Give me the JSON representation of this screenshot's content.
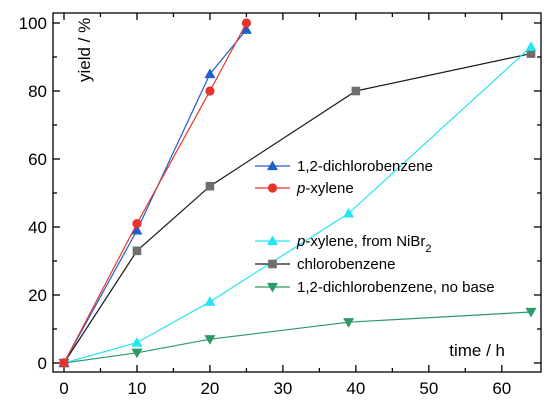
{
  "chart_data": {
    "type": "line",
    "title": "",
    "xlabel": "time / h",
    "ylabel": "yield / %",
    "xlim": [
      0,
      64
    ],
    "ylim": [
      0,
      100
    ],
    "xticks": [
      0,
      10,
      20,
      30,
      40,
      50,
      60
    ],
    "yticks": [
      0,
      20,
      40,
      60,
      80,
      100
    ],
    "grid": false,
    "legend_position": "right",
    "series": [
      {
        "name": "1,2-dichlorobenzene",
        "name_parts": [
          {
            "text": "1,2-dichlorobenzene"
          }
        ],
        "marker": "triangle-up",
        "color": "#1f5fc8",
        "x": [
          0,
          10,
          20,
          25
        ],
        "y": [
          0,
          39,
          85,
          98
        ]
      },
      {
        "name": "p-xylene",
        "name_parts": [
          {
            "text": "p",
            "style": "italic"
          },
          {
            "text": "-xylene"
          }
        ],
        "marker": "circle",
        "color": "#e8332c",
        "x": [
          0,
          10,
          20,
          25
        ],
        "y": [
          0,
          41,
          80,
          100
        ]
      },
      {
        "name": "p-xylene, from NiBr2",
        "name_parts": [
          {
            "text": "p",
            "style": "italic"
          },
          {
            "text": "-xylene, from NiBr"
          },
          {
            "text": "2",
            "style": "sub"
          }
        ],
        "marker": "triangle-up",
        "color": "#24e6f0",
        "x": [
          0,
          10,
          20,
          39,
          64
        ],
        "y": [
          0,
          6,
          18,
          44,
          93
        ]
      },
      {
        "name": "chlorobenzene",
        "name_parts": [
          {
            "text": "chlorobenzene"
          }
        ],
        "marker": "square",
        "color": "#6e6e6e",
        "line_color": "#1a1a1a",
        "x": [
          0,
          10,
          20,
          40,
          64
        ],
        "y": [
          0,
          33,
          52,
          80,
          91
        ]
      },
      {
        "name": "1,2-dichlorobenzene, no base",
        "name_parts": [
          {
            "text": "1,2-dichlorobenzene, no base"
          }
        ],
        "marker": "triangle-down",
        "color": "#2a9a68",
        "x": [
          0,
          10,
          20,
          39,
          64
        ],
        "y": [
          0,
          3,
          7,
          12,
          15
        ]
      }
    ]
  }
}
